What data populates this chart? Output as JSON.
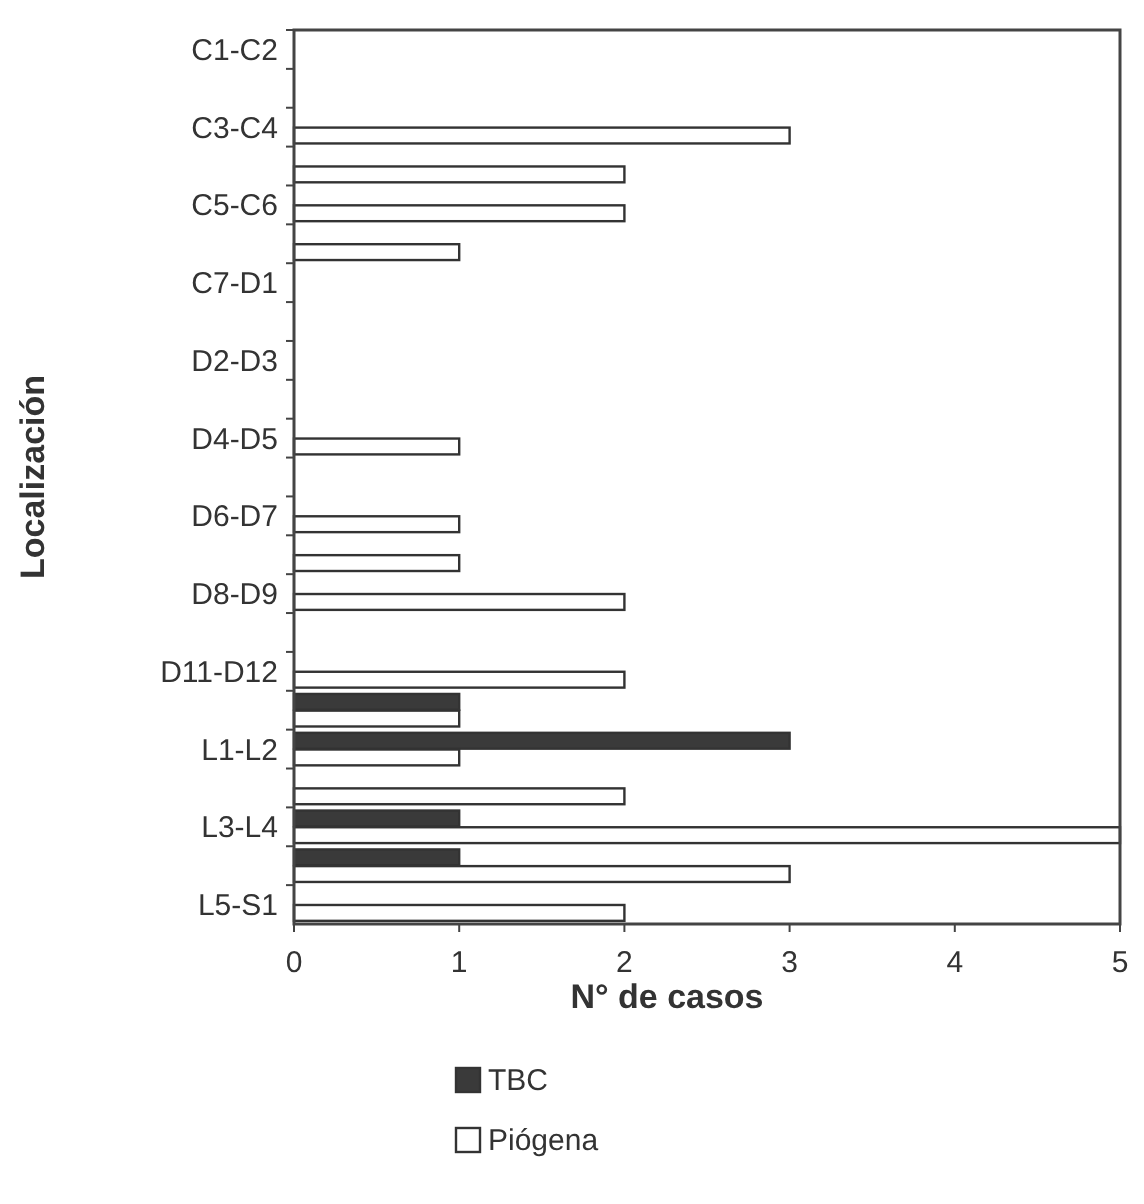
{
  "chart_data": {
    "type": "bar",
    "orientation": "horizontal",
    "xlabel": "N° de casos",
    "ylabel": "Localización",
    "categories": [
      "C1-C2",
      null,
      "C3-C4",
      null,
      "C5-C6",
      null,
      "C7-D1",
      null,
      "D2-D3",
      null,
      "D4-D5",
      null,
      "D6-D7",
      null,
      "D8-D9",
      null,
      "D11-D12",
      null,
      "L1-L2",
      null,
      "L3-L4",
      null,
      "L5-S1"
    ],
    "series": [
      {
        "name": "TBC",
        "color": "#3a3a3a",
        "values": [
          0,
          0,
          0,
          0,
          0,
          0,
          0,
          0,
          0,
          0,
          0,
          0,
          0,
          0,
          0,
          0,
          0,
          1,
          3,
          0,
          1,
          1,
          0
        ]
      },
      {
        "name": "Piógena",
        "color": "#ffffff",
        "values": [
          0,
          0,
          3,
          2,
          2,
          1,
          0,
          0,
          0,
          0,
          1,
          0,
          1,
          1,
          2,
          0,
          2,
          1,
          1,
          2,
          5,
          3,
          2
        ]
      }
    ],
    "xlim": [
      0,
      5
    ],
    "xticks": [
      0,
      1,
      2,
      3,
      4,
      5
    ],
    "grid": false,
    "legend": "bottom"
  }
}
